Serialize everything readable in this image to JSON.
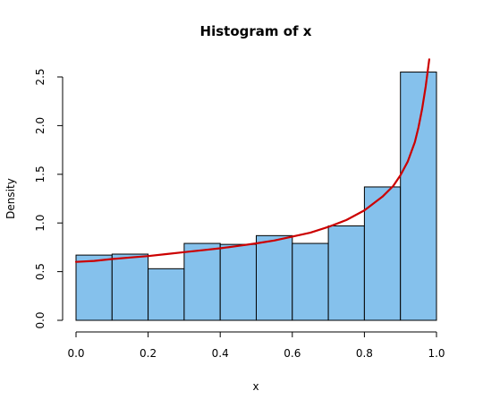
{
  "chart_data": {
    "type": "bar",
    "title": "Histogram of x",
    "xlabel": "x",
    "ylabel": "Density",
    "bins": [
      {
        "from": 0.0,
        "to": 0.1,
        "density": 0.67
      },
      {
        "from": 0.1,
        "to": 0.2,
        "density": 0.68
      },
      {
        "from": 0.2,
        "to": 0.3,
        "density": 0.53
      },
      {
        "from": 0.3,
        "to": 0.4,
        "density": 0.79
      },
      {
        "from": 0.4,
        "to": 0.5,
        "density": 0.78
      },
      {
        "from": 0.5,
        "to": 0.6,
        "density": 0.87
      },
      {
        "from": 0.6,
        "to": 0.7,
        "density": 0.79
      },
      {
        "from": 0.7,
        "to": 0.8,
        "density": 0.97
      },
      {
        "from": 0.8,
        "to": 0.9,
        "density": 1.37
      },
      {
        "from": 0.9,
        "to": 1.0,
        "density": 2.55
      }
    ],
    "curve": {
      "x": [
        0.0,
        0.05,
        0.1,
        0.15,
        0.2,
        0.25,
        0.3,
        0.35,
        0.4,
        0.45,
        0.5,
        0.55,
        0.6,
        0.65,
        0.7,
        0.75,
        0.8,
        0.85,
        0.88,
        0.9,
        0.92,
        0.94,
        0.95,
        0.96,
        0.97,
        0.98
      ],
      "y": [
        0.6,
        0.61,
        0.63,
        0.645,
        0.66,
        0.68,
        0.7,
        0.72,
        0.74,
        0.765,
        0.79,
        0.82,
        0.86,
        0.9,
        0.96,
        1.03,
        1.13,
        1.27,
        1.38,
        1.49,
        1.63,
        1.83,
        1.98,
        2.17,
        2.4,
        2.68
      ]
    },
    "xticks": [
      {
        "value": 0.0,
        "label": "0.0"
      },
      {
        "value": 0.2,
        "label": "0.2"
      },
      {
        "value": 0.4,
        "label": "0.4"
      },
      {
        "value": 0.6,
        "label": "0.6"
      },
      {
        "value": 0.8,
        "label": "0.8"
      },
      {
        "value": 1.0,
        "label": "1.0"
      }
    ],
    "yticks": [
      {
        "value": 0.0,
        "label": "0.0"
      },
      {
        "value": 0.5,
        "label": "0.5"
      },
      {
        "value": 1.0,
        "label": "1.0"
      },
      {
        "value": 1.5,
        "label": "1.5"
      },
      {
        "value": 2.0,
        "label": "2.0"
      },
      {
        "value": 2.5,
        "label": "2.5"
      }
    ],
    "xlim": [
      0.0,
      1.0
    ],
    "ylim": [
      0.0,
      2.5
    ],
    "grid": false,
    "colors": {
      "bar_fill": "#85C1EC",
      "bar_stroke": "#000000",
      "curve": "#CC0000"
    }
  }
}
